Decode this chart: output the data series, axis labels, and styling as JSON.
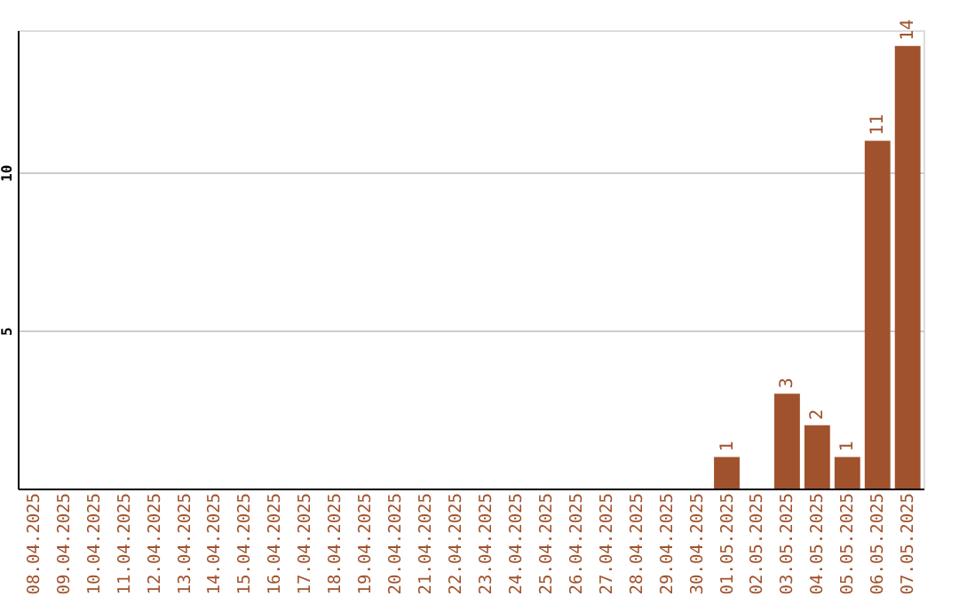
{
  "chart_data": {
    "type": "bar",
    "categories": [
      "08.04.2025",
      "09.04.2025",
      "10.04.2025",
      "11.04.2025",
      "12.04.2025",
      "13.04.2025",
      "14.04.2025",
      "15.04.2025",
      "16.04.2025",
      "17.04.2025",
      "18.04.2025",
      "19.04.2025",
      "20.04.2025",
      "21.04.2025",
      "22.04.2025",
      "23.04.2025",
      "24.04.2025",
      "25.04.2025",
      "26.04.2025",
      "27.04.2025",
      "28.04.2025",
      "29.04.2025",
      "30.04.2025",
      "01.05.2025",
      "02.05.2025",
      "03.05.2025",
      "04.05.2025",
      "05.05.2025",
      "06.05.2025",
      "07.05.2025"
    ],
    "values": [
      0,
      0,
      0,
      0,
      0,
      0,
      0,
      0,
      0,
      0,
      0,
      0,
      0,
      0,
      0,
      0,
      0,
      0,
      0,
      0,
      0,
      0,
      0,
      1,
      0,
      3,
      2,
      1,
      11,
      14
    ],
    "value_labels": [
      null,
      null,
      null,
      null,
      null,
      null,
      null,
      null,
      null,
      null,
      null,
      null,
      null,
      null,
      null,
      null,
      null,
      null,
      null,
      null,
      null,
      null,
      null,
      "1",
      null,
      "3",
      "2",
      "1",
      "11",
      "14"
    ],
    "color": "#a0522d",
    "ylim": [
      0,
      14.5
    ],
    "yticks": [
      5,
      10
    ],
    "grid": "y"
  }
}
